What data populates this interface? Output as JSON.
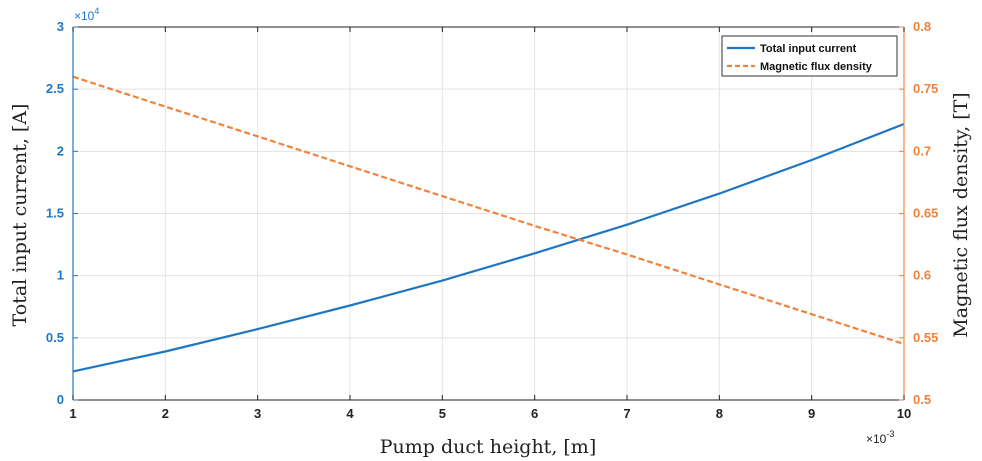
{
  "chart_data": {
    "type": "line",
    "xlabel": "Pump duct height, [m]",
    "ylabel_left": "Total input current, [A]",
    "ylabel_right": "Magnetic flux density, [T]",
    "x_exponent": {
      "base": "×10",
      "power": "-3"
    },
    "y_left_exponent": {
      "base": "×10",
      "power": "4"
    },
    "xlim": [
      1,
      10
    ],
    "ylim_left": [
      0,
      3
    ],
    "ylim_right": [
      0.5,
      0.8
    ],
    "x_ticks": [
      "1",
      "2",
      "3",
      "4",
      "5",
      "6",
      "7",
      "8",
      "9",
      "10"
    ],
    "y_left_ticks": [
      "0",
      "0.5",
      "1",
      "1.5",
      "2",
      "2.5",
      "3"
    ],
    "y_right_ticks": [
      "0.5",
      "0.55",
      "0.6",
      "0.65",
      "0.7",
      "0.75",
      "0.8"
    ],
    "grid": true,
    "legend_position": "top-right",
    "x": [
      1,
      2,
      3,
      4,
      5,
      6,
      7,
      8,
      9,
      10
    ],
    "series": [
      {
        "name": "Total input current",
        "axis": "left",
        "color": "#1f77c4",
        "style": "solid",
        "values": [
          0.23,
          0.39,
          0.57,
          0.76,
          0.96,
          1.18,
          1.41,
          1.66,
          1.93,
          2.22
        ]
      },
      {
        "name": "Magnetic flux density",
        "axis": "right",
        "color": "#f0823a",
        "style": "dashed",
        "values": [
          0.76,
          0.736,
          0.712,
          0.688,
          0.664,
          0.64,
          0.617,
          0.593,
          0.569,
          0.545
        ]
      }
    ]
  }
}
